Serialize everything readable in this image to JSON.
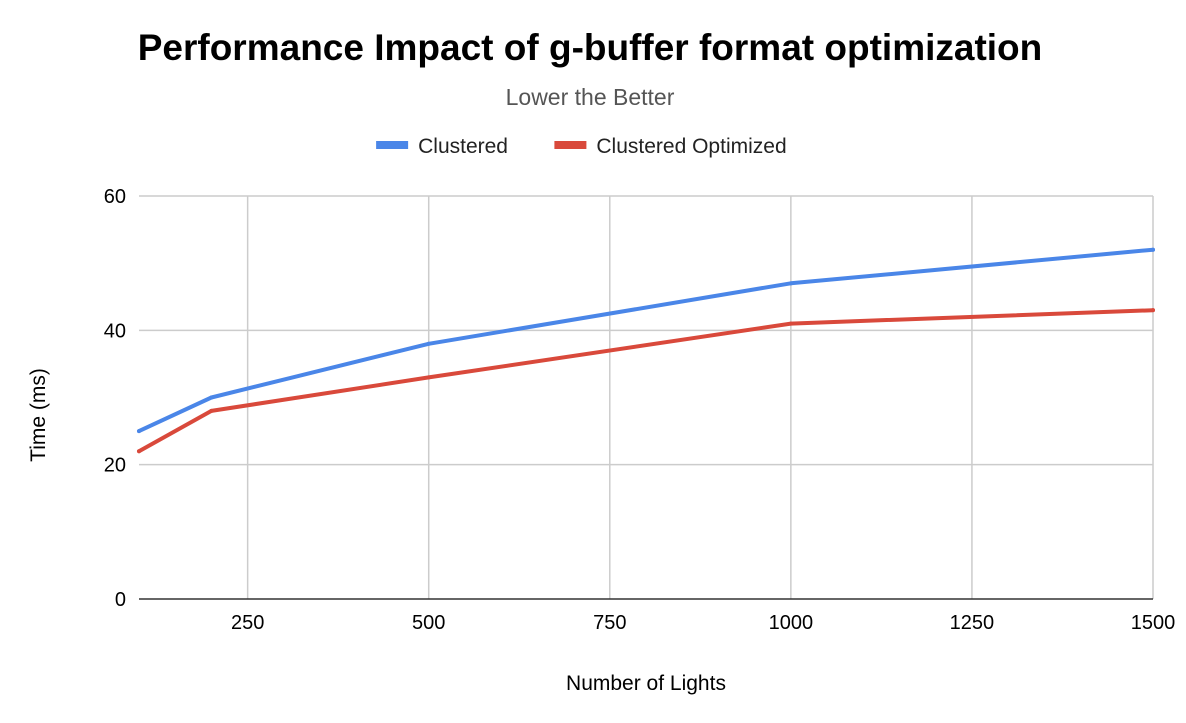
{
  "chart_data": {
    "type": "line",
    "title": "Performance Impact of g-buffer format optimization",
    "subtitle": "Lower the Better",
    "xlabel": "Number of Lights",
    "ylabel": "Time (ms)",
    "xlim": [
      100,
      1500
    ],
    "ylim": [
      0,
      60
    ],
    "x_ticks": [
      250,
      500,
      750,
      1000,
      1250,
      1500
    ],
    "y_ticks": [
      0,
      20,
      40,
      60
    ],
    "grid": true,
    "legend_position": "top",
    "x": [
      100,
      200,
      500,
      1000,
      1500
    ],
    "series": [
      {
        "name": "Clustered",
        "color": "#4a86e8",
        "values": [
          25,
          30,
          38,
          47,
          52
        ]
      },
      {
        "name": "Clustered Optimized",
        "color": "#d9493b",
        "values": [
          22,
          28,
          33,
          41,
          43
        ]
      }
    ]
  }
}
